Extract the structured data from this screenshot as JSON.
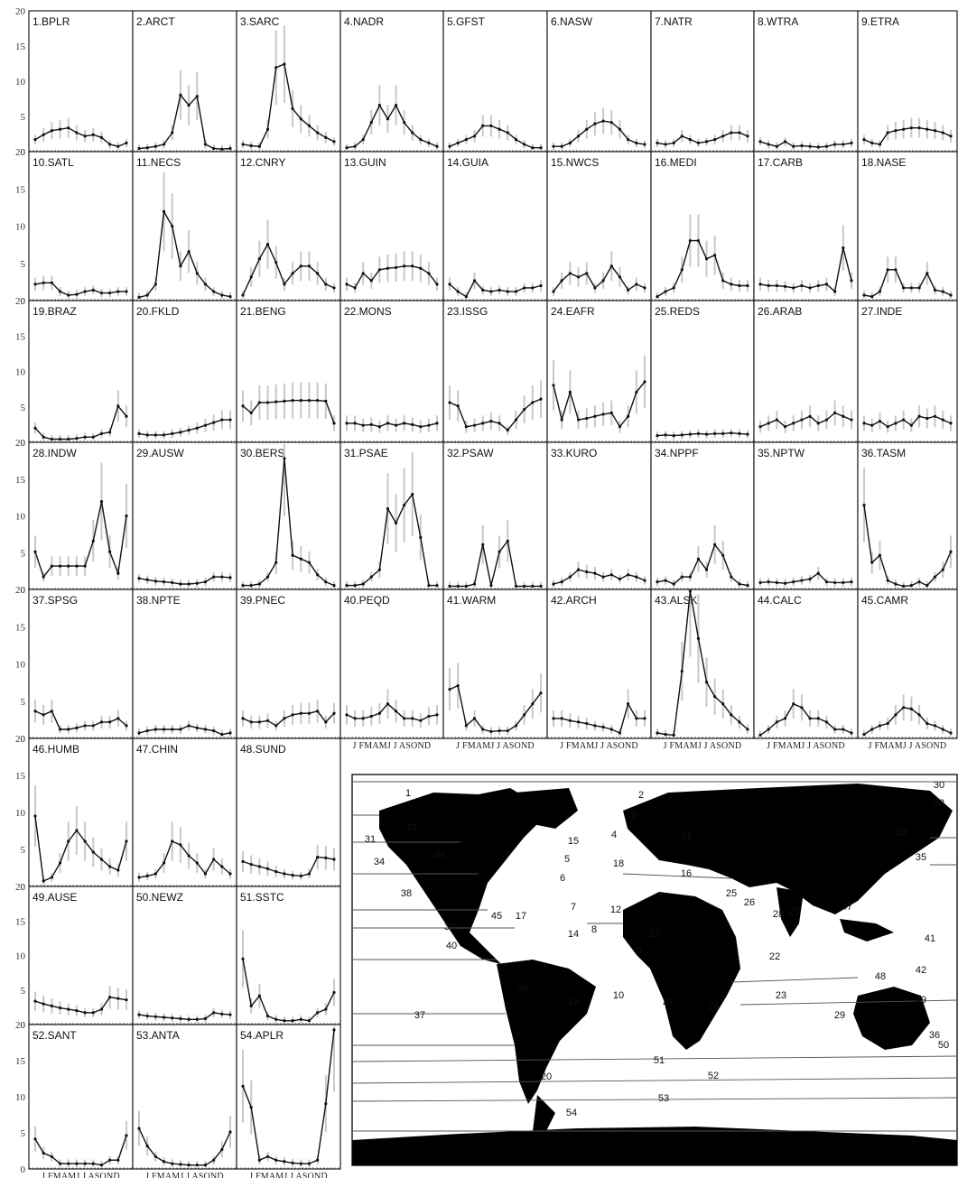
{
  "chart_data": {
    "type": "line",
    "y_ticks": [
      "20",
      "15",
      "10",
      "5",
      "0"
    ],
    "ylim": [
      0,
      20
    ],
    "x_tick_label": "J FMAMJ J ASOND",
    "panels": [
      {
        "title": "1.BPLR",
        "values": [
          1.5,
          2.2,
          2.8,
          3.0,
          3.2,
          2.5,
          2.0,
          2.2,
          1.8,
          0.8,
          0.5,
          1.0
        ]
      },
      {
        "title": "2.ARCT",
        "values": [
          0.2,
          0.3,
          0.5,
          0.8,
          2.5,
          8.0,
          6.5,
          7.8,
          0.8,
          0.2,
          0.1,
          0.2
        ]
      },
      {
        "title": "3.SARC",
        "values": [
          0.8,
          0.6,
          0.5,
          3.0,
          12.0,
          12.5,
          6.0,
          4.5,
          3.5,
          2.5,
          1.8,
          1.2
        ]
      },
      {
        "title": "4.NADR",
        "values": [
          0.3,
          0.5,
          1.5,
          4.0,
          6.5,
          4.5,
          6.5,
          4.0,
          2.5,
          1.5,
          1.0,
          0.5
        ]
      },
      {
        "title": "5.GFST",
        "values": [
          0.5,
          1.0,
          1.5,
          2.0,
          3.5,
          3.5,
          3.0,
          2.5,
          1.5,
          0.8,
          0.3,
          0.3
        ]
      },
      {
        "title": "6.NASW",
        "values": [
          0.5,
          0.5,
          1.0,
          2.0,
          3.0,
          3.8,
          4.2,
          4.0,
          3.0,
          1.5,
          1.0,
          0.8
        ]
      },
      {
        "title": "7.NATR",
        "values": [
          1.0,
          0.8,
          1.0,
          2.0,
          1.5,
          1.0,
          1.2,
          1.5,
          2.0,
          2.5,
          2.5,
          2.0
        ]
      },
      {
        "title": "8.WTRA",
        "values": [
          1.2,
          0.8,
          0.5,
          1.2,
          0.5,
          0.6,
          0.5,
          0.4,
          0.5,
          0.8,
          0.8,
          1.0
        ]
      },
      {
        "title": "9.ETRA",
        "values": [
          1.5,
          1.0,
          0.8,
          2.5,
          2.8,
          3.0,
          3.2,
          3.2,
          3.0,
          2.8,
          2.5,
          2.0
        ]
      },
      {
        "title": "10.SATL",
        "values": [
          2.0,
          2.2,
          2.2,
          1.0,
          0.5,
          0.6,
          1.0,
          1.2,
          0.8,
          0.8,
          1.0,
          1.0
        ]
      },
      {
        "title": "11.NECS",
        "values": [
          0.2,
          0.5,
          2.0,
          12.0,
          10.0,
          4.5,
          6.5,
          3.5,
          2.0,
          1.0,
          0.5,
          0.3
        ]
      },
      {
        "title": "12.CNRY",
        "values": [
          0.5,
          3.0,
          5.5,
          7.5,
          5.0,
          2.0,
          3.5,
          4.5,
          4.5,
          3.5,
          2.0,
          1.5
        ]
      },
      {
        "title": "13.GUIN",
        "values": [
          2.0,
          1.5,
          3.5,
          2.5,
          4.0,
          4.2,
          4.3,
          4.5,
          4.5,
          4.2,
          3.5,
          2.0
        ]
      },
      {
        "title": "14.GUIA",
        "values": [
          2.0,
          1.0,
          0.3,
          2.5,
          1.2,
          1.0,
          1.2,
          1.0,
          1.0,
          1.5,
          1.5,
          1.8
        ]
      },
      {
        "title": "15.NWCS",
        "values": [
          1.0,
          2.5,
          3.5,
          3.0,
          3.5,
          1.5,
          2.5,
          4.5,
          3.0,
          1.2,
          2.0,
          1.5
        ]
      },
      {
        "title": "16.MEDI",
        "values": [
          0.3,
          1.0,
          1.5,
          4.0,
          8.0,
          8.0,
          5.5,
          6.0,
          2.5,
          2.0,
          1.8,
          1.8
        ]
      },
      {
        "title": "17.CARB",
        "values": [
          2.0,
          1.8,
          1.8,
          1.7,
          1.5,
          1.8,
          1.5,
          1.8,
          2.0,
          1.0,
          7.0,
          2.5
        ]
      },
      {
        "title": "18.NASE",
        "values": [
          0.5,
          0.3,
          1.0,
          4.0,
          4.0,
          1.5,
          1.5,
          1.5,
          3.5,
          1.2,
          1.0,
          0.5
        ]
      },
      {
        "title": "19.BRAZ",
        "values": [
          1.8,
          0.5,
          0.2,
          0.2,
          0.2,
          0.3,
          0.5,
          0.5,
          1.0,
          1.2,
          5.0,
          3.5
        ]
      },
      {
        "title": "20.FKLD",
        "values": [
          1.0,
          0.8,
          0.8,
          0.8,
          1.0,
          1.2,
          1.5,
          1.8,
          2.2,
          2.6,
          3.0,
          3.0
        ]
      },
      {
        "title": "21.BENG",
        "values": [
          5.0,
          4.0,
          5.5,
          5.5,
          5.6,
          5.7,
          5.8,
          5.8,
          5.8,
          5.8,
          5.7,
          2.5
        ]
      },
      {
        "title": "22.MONS",
        "values": [
          2.5,
          2.5,
          2.2,
          2.3,
          2.0,
          2.5,
          2.2,
          2.5,
          2.3,
          2.0,
          2.2,
          2.5
        ]
      },
      {
        "title": "23.ISSG",
        "values": [
          5.5,
          5.0,
          2.0,
          2.2,
          2.5,
          2.8,
          2.5,
          1.5,
          3.0,
          4.5,
          5.5,
          6.0
        ]
      },
      {
        "title": "24.EAFR",
        "values": [
          8.0,
          3.0,
          7.0,
          3.0,
          3.2,
          3.5,
          3.8,
          4.0,
          2.0,
          3.5,
          7.0,
          8.5
        ]
      },
      {
        "title": "25.REDS",
        "values": [
          0.7,
          0.8,
          0.7,
          0.8,
          0.9,
          1.0,
          0.9,
          1.0,
          1.0,
          1.1,
          1.0,
          0.9
        ]
      },
      {
        "title": "26.ARAB",
        "values": [
          2.0,
          2.5,
          3.0,
          2.0,
          2.5,
          3.0,
          3.5,
          2.5,
          3.0,
          4.0,
          3.5,
          3.0
        ]
      },
      {
        "title": "27.INDE",
        "values": [
          2.5,
          2.2,
          2.8,
          2.0,
          2.5,
          3.0,
          2.2,
          3.5,
          3.2,
          3.5,
          3.0,
          2.5
        ]
      },
      {
        "title": "28.INDW",
        "values": [
          5.0,
          1.5,
          3.0,
          3.0,
          3.0,
          3.0,
          3.0,
          6.5,
          12.0,
          5.0,
          2.0,
          10.0
        ]
      },
      {
        "title": "29.AUSW",
        "values": [
          1.3,
          1.1,
          0.9,
          0.8,
          0.7,
          0.5,
          0.5,
          0.6,
          0.8,
          1.5,
          1.5,
          1.4
        ]
      },
      {
        "title": "30.BERS",
        "values": [
          0.3,
          0.3,
          0.5,
          1.5,
          3.5,
          18.0,
          4.5,
          4.0,
          3.5,
          1.8,
          0.8,
          0.3
        ]
      },
      {
        "title": "31.PSAE",
        "values": [
          0.3,
          0.3,
          0.5,
          1.5,
          2.5,
          11.0,
          9.0,
          11.5,
          13.0,
          7.0,
          0.3,
          0.3
        ]
      },
      {
        "title": "32.PSAW",
        "values": [
          0.2,
          0.2,
          0.2,
          0.5,
          6.0,
          0.3,
          5.0,
          6.5,
          0.2,
          0.2,
          0.2,
          0.2
        ]
      },
      {
        "title": "33.KURO",
        "values": [
          0.5,
          0.8,
          1.5,
          2.5,
          2.2,
          2.0,
          1.5,
          1.8,
          1.2,
          1.8,
          1.5,
          1.0
        ]
      },
      {
        "title": "34.NPPF",
        "values": [
          0.8,
          1.0,
          0.5,
          1.5,
          1.5,
          4.0,
          2.5,
          6.0,
          4.5,
          1.5,
          0.5,
          0.3
        ]
      },
      {
        "title": "35.NPTW",
        "values": [
          0.7,
          0.8,
          0.7,
          0.6,
          0.8,
          1.0,
          1.2,
          2.0,
          0.8,
          0.7,
          0.7,
          0.8
        ]
      },
      {
        "title": "36.TASM",
        "values": [
          11.5,
          3.5,
          4.5,
          1.0,
          0.5,
          0.2,
          0.3,
          0.8,
          0.3,
          1.5,
          2.5,
          5.0
        ]
      },
      {
        "title": "37.SPSG",
        "values": [
          3.5,
          3.0,
          3.5,
          1.0,
          1.0,
          1.2,
          1.5,
          1.5,
          2.0,
          2.0,
          2.5,
          1.5
        ]
      },
      {
        "title": "38.NPTE",
        "values": [
          0.5,
          0.8,
          1.0,
          1.0,
          1.0,
          1.0,
          1.5,
          1.2,
          1.0,
          0.8,
          0.3,
          0.5
        ]
      },
      {
        "title": "39.PNEC",
        "values": [
          2.5,
          2.0,
          2.0,
          2.2,
          1.5,
          2.5,
          3.0,
          3.2,
          3.2,
          3.5,
          2.0,
          3.2
        ]
      },
      {
        "title": "40.PEQD",
        "values": [
          3.0,
          2.5,
          2.5,
          2.8,
          3.2,
          4.5,
          3.5,
          2.5,
          2.5,
          2.2,
          2.8,
          3.0
        ]
      },
      {
        "title": "41.WARM",
        "values": [
          6.5,
          7.0,
          1.5,
          2.5,
          1.0,
          0.7,
          0.8,
          0.8,
          1.5,
          3.0,
          4.5,
          6.0
        ]
      },
      {
        "title": "42.ARCH",
        "values": [
          2.5,
          2.5,
          2.2,
          2.0,
          1.8,
          1.5,
          1.3,
          1.0,
          0.5,
          4.5,
          2.5,
          2.5
        ]
      },
      {
        "title": "43.ALSK",
        "values": [
          0.5,
          0.3,
          0.2,
          9.0,
          20.0,
          13.5,
          7.5,
          5.5,
          4.5,
          3.0,
          2.0,
          1.0
        ]
      },
      {
        "title": "44.CALC",
        "values": [
          0.2,
          1.0,
          2.0,
          2.5,
          4.5,
          4.0,
          2.5,
          2.5,
          2.0,
          1.0,
          1.0,
          0.5
        ]
      },
      {
        "title": "45.CAMR",
        "values": [
          0.3,
          1.0,
          1.5,
          1.8,
          3.0,
          4.0,
          3.8,
          3.0,
          1.8,
          1.5,
          1.0,
          0.5
        ]
      },
      {
        "title": "46.HUMB",
        "values": [
          9.5,
          0.5,
          1.0,
          3.0,
          6.0,
          7.5,
          6.0,
          4.5,
          3.5,
          2.5,
          2.0,
          6.0
        ]
      },
      {
        "title": "47.CHIN",
        "values": [
          1.0,
          1.2,
          1.5,
          3.0,
          6.0,
          5.5,
          4.0,
          3.0,
          1.5,
          3.5,
          2.5,
          1.5
        ]
      },
      {
        "title": "48.SUND",
        "values": [
          3.2,
          2.8,
          2.5,
          2.2,
          1.8,
          1.5,
          1.3,
          1.2,
          1.5,
          3.8,
          3.7,
          3.5
        ]
      },
      {
        "title": "49.AUSE",
        "values": [
          3.2,
          2.8,
          2.5,
          2.2,
          2.0,
          1.8,
          1.5,
          1.5,
          2.0,
          3.8,
          3.6,
          3.4
        ]
      },
      {
        "title": "50.NEWZ",
        "values": [
          1.2,
          1.0,
          0.9,
          0.8,
          0.7,
          0.6,
          0.5,
          0.5,
          0.6,
          1.5,
          1.3,
          1.2
        ]
      },
      {
        "title": "51.SSTC",
        "values": [
          9.5,
          2.5,
          4.0,
          1.0,
          0.5,
          0.3,
          0.3,
          0.5,
          0.3,
          1.5,
          2.0,
          4.5
        ]
      },
      {
        "title": "52.SANT",
        "values": [
          4.0,
          2.0,
          1.5,
          0.5,
          0.5,
          0.5,
          0.5,
          0.5,
          0.3,
          1.0,
          1.0,
          4.5
        ]
      },
      {
        "title": "53.ANTA",
        "values": [
          5.5,
          3.0,
          1.5,
          0.8,
          0.5,
          0.4,
          0.3,
          0.3,
          0.3,
          1.0,
          2.5,
          5.0
        ]
      },
      {
        "title": "54.APLR",
        "values": [
          11.5,
          8.5,
          1.0,
          1.5,
          1.0,
          0.8,
          0.6,
          0.5,
          0.5,
          1.0,
          9.0,
          19.5
        ]
      }
    ],
    "map_labels": [
      "1",
      "2",
      "3",
      "4",
      "5",
      "6",
      "7",
      "8",
      "9",
      "10",
      "11",
      "12",
      "13",
      "14",
      "15",
      "16",
      "17",
      "18",
      "19",
      "20",
      "21",
      "22",
      "23",
      "24",
      "25",
      "26",
      "27",
      "28",
      "29",
      "30",
      "31",
      "32",
      "33",
      "34",
      "35",
      "36",
      "37",
      "38",
      "39",
      "40",
      "41",
      "42",
      "43",
      "44",
      "45",
      "46",
      "47",
      "48",
      "49",
      "50",
      "51",
      "52",
      "53",
      "54"
    ]
  }
}
